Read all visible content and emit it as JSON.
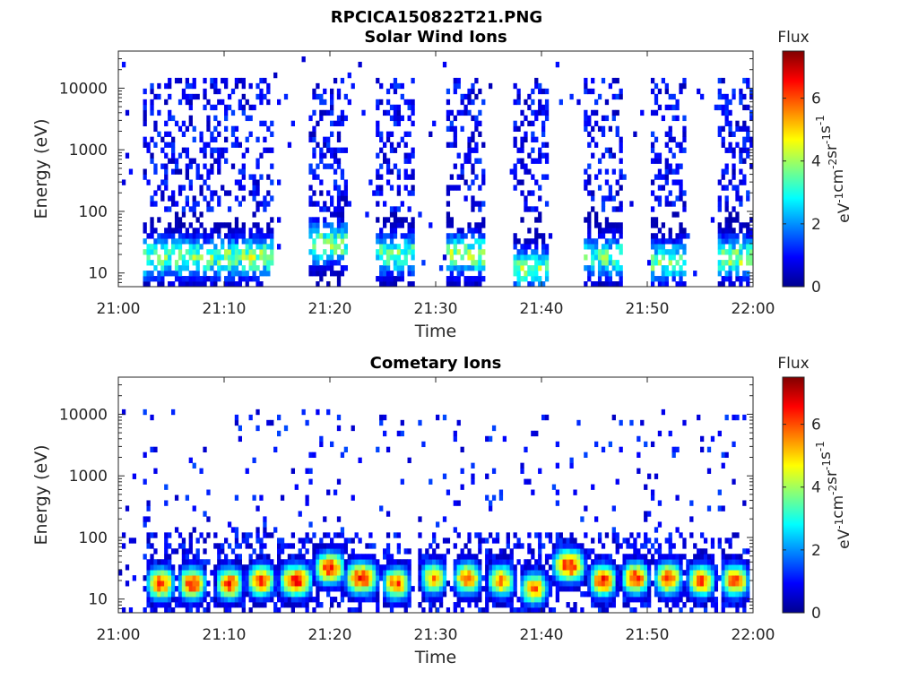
{
  "figure_title": "RPCICA150822T21.PNG",
  "chart_data": [
    {
      "type": "heatmap",
      "title": "Solar Wind Ions",
      "xlabel": "Time",
      "ylabel": "Energy (eV)",
      "x_tick_labels": [
        "21:00",
        "21:10",
        "21:20",
        "21:30",
        "21:40",
        "21:50",
        "22:00"
      ],
      "x_range": [
        "21:00",
        "22:00"
      ],
      "y_scale": "log",
      "y_tick_values": [
        10,
        100,
        1000,
        10000
      ],
      "y_tick_labels": [
        "10",
        "100",
        "1000",
        "10000"
      ],
      "y_range": [
        6,
        40000
      ],
      "colorbar": {
        "title": "Flux",
        "label": "eV-1cm-2sr-1s-1",
        "range": [
          0,
          7.5
        ],
        "tick_labels": [
          "0",
          "2",
          "4",
          "6"
        ],
        "colormap": "jet"
      },
      "bursts": [
        {
          "start_min": 2.5,
          "end_min": 6.5,
          "peak_flux": 4.5,
          "peak_energy_ev": 18
        },
        {
          "start_min": 6.5,
          "end_min": 10.5,
          "peak_flux": 4.2,
          "peak_energy_ev": 18
        },
        {
          "start_min": 10.5,
          "end_min": 14.8,
          "peak_flux": 4.5,
          "peak_energy_ev": 18
        },
        {
          "start_min": 18.0,
          "end_min": 21.8,
          "peak_flux": 4.5,
          "peak_energy_ev": 30
        },
        {
          "start_min": 24.5,
          "end_min": 28.0,
          "peak_flux": 4.0,
          "peak_energy_ev": 20
        },
        {
          "start_min": 31.0,
          "end_min": 34.5,
          "peak_flux": 4.6,
          "peak_energy_ev": 20
        },
        {
          "start_min": 37.5,
          "end_min": 40.8,
          "peak_flux": 4.3,
          "peak_energy_ev": 12
        },
        {
          "start_min": 44.0,
          "end_min": 47.5,
          "peak_flux": 4.0,
          "peak_energy_ev": 18
        },
        {
          "start_min": 50.5,
          "end_min": 53.8,
          "peak_flux": 4.2,
          "peak_energy_ev": 15
        },
        {
          "start_min": 56.8,
          "end_min": 60.0,
          "peak_flux": 4.6,
          "peak_energy_ev": 18
        }
      ]
    },
    {
      "type": "heatmap",
      "title": "Cometary Ions",
      "xlabel": "Time",
      "ylabel": "Energy (eV)",
      "x_tick_labels": [
        "21:00",
        "21:10",
        "21:20",
        "21:30",
        "21:40",
        "21:50",
        "22:00"
      ],
      "x_range": [
        "21:00",
        "22:00"
      ],
      "y_scale": "log",
      "y_tick_values": [
        10,
        100,
        1000,
        10000
      ],
      "y_tick_labels": [
        "10",
        "100",
        "1000",
        "10000"
      ],
      "y_range": [
        6,
        40000
      ],
      "colorbar": {
        "title": "Flux",
        "label": "eV-1cm-2sr-1s-1",
        "range": [
          0,
          7.5
        ],
        "tick_labels": [
          "0",
          "2",
          "4",
          "6"
        ],
        "colormap": "jet"
      },
      "bursts": [
        {
          "center_min": 4.0,
          "width_min": 1.6,
          "peak_flux": 7.0,
          "peak_energy_ev": 18
        },
        {
          "center_min": 7.0,
          "width_min": 1.6,
          "peak_flux": 7.0,
          "peak_energy_ev": 18
        },
        {
          "center_min": 10.5,
          "width_min": 1.6,
          "peak_flux": 6.8,
          "peak_energy_ev": 18
        },
        {
          "center_min": 13.5,
          "width_min": 1.6,
          "peak_flux": 6.8,
          "peak_energy_ev": 20
        },
        {
          "center_min": 16.8,
          "width_min": 2.2,
          "peak_flux": 7.2,
          "peak_energy_ev": 20
        },
        {
          "center_min": 20.0,
          "width_min": 2.0,
          "peak_flux": 7.0,
          "peak_energy_ev": 32
        },
        {
          "center_min": 23.0,
          "width_min": 2.2,
          "peak_flux": 7.2,
          "peak_energy_ev": 22
        },
        {
          "center_min": 26.3,
          "width_min": 1.6,
          "peak_flux": 6.6,
          "peak_energy_ev": 18
        },
        {
          "center_min": 29.8,
          "width_min": 1.4,
          "peak_flux": 6.0,
          "peak_energy_ev": 22
        },
        {
          "center_min": 33.0,
          "width_min": 1.6,
          "peak_flux": 6.5,
          "peak_energy_ev": 22
        },
        {
          "center_min": 36.2,
          "width_min": 1.6,
          "peak_flux": 6.2,
          "peak_energy_ev": 20
        },
        {
          "center_min": 39.3,
          "width_min": 1.6,
          "peak_flux": 6.4,
          "peak_energy_ev": 15
        },
        {
          "center_min": 42.6,
          "width_min": 2.2,
          "peak_flux": 7.3,
          "peak_energy_ev": 35
        },
        {
          "center_min": 45.8,
          "width_min": 1.6,
          "peak_flux": 7.0,
          "peak_energy_ev": 20
        },
        {
          "center_min": 48.9,
          "width_min": 1.6,
          "peak_flux": 7.0,
          "peak_energy_ev": 22
        },
        {
          "center_min": 52.0,
          "width_min": 1.6,
          "peak_flux": 7.0,
          "peak_energy_ev": 22
        },
        {
          "center_min": 55.1,
          "width_min": 1.6,
          "peak_flux": 6.8,
          "peak_energy_ev": 20
        },
        {
          "center_min": 58.3,
          "width_min": 1.6,
          "peak_flux": 6.8,
          "peak_energy_ev": 20
        }
      ]
    }
  ]
}
